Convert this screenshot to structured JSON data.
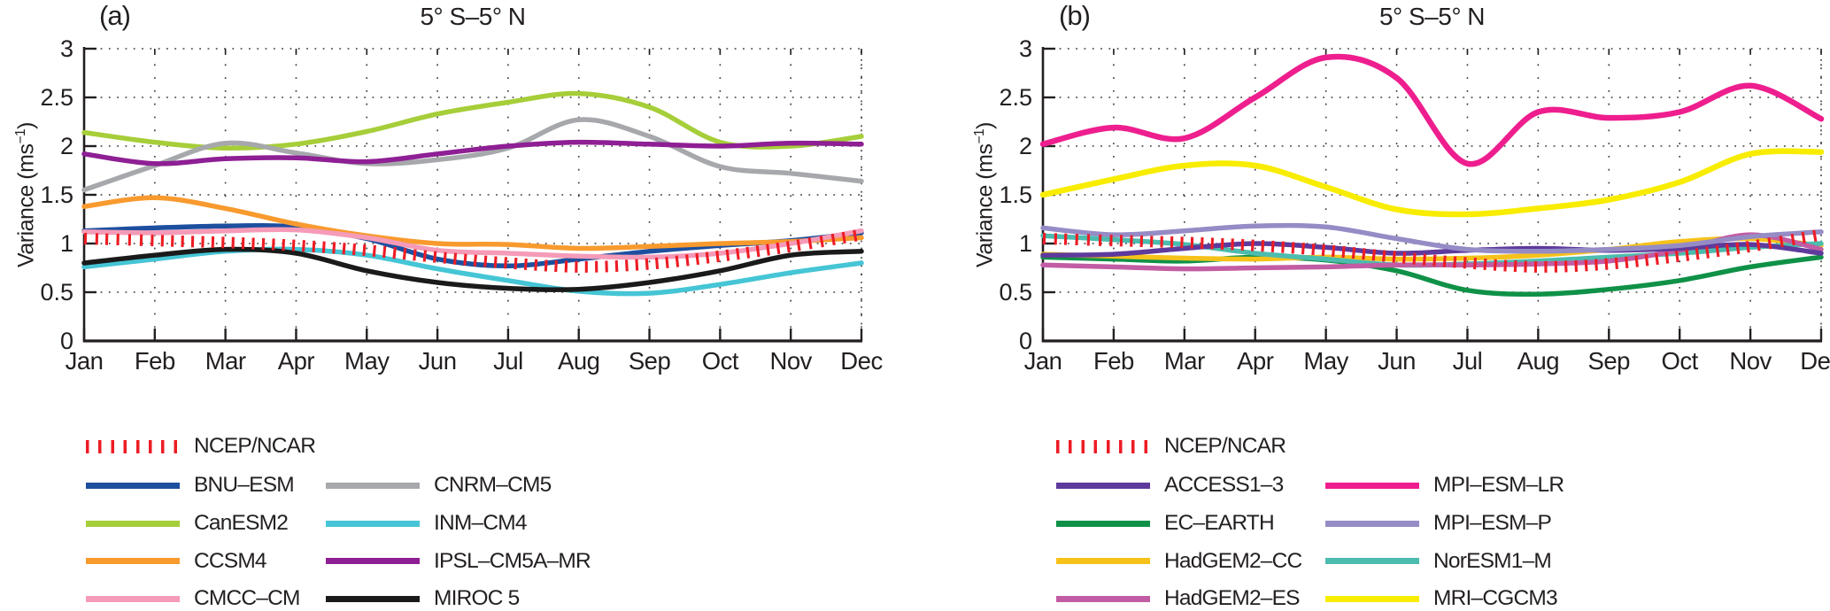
{
  "figure": {
    "background": "#ffffff",
    "axis_color": "#231f20",
    "grid_color": "#3c3c3c",
    "reference_red": "#ed1c24"
  },
  "chart_data": [
    {
      "type": "line",
      "panel_label": "(a)",
      "title": "5° S–5° N",
      "ylabel": {
        "pre": "Variance (ms",
        "sup": "−1",
        "post": ")"
      },
      "x_categories": [
        "Jan",
        "Feb",
        "Mar",
        "Apr",
        "May",
        "Jun",
        "Jul",
        "Aug",
        "Sep",
        "Oct",
        "Nov",
        "Dec"
      ],
      "y_ticks": [
        "0",
        "0.5",
        "1",
        "1.5",
        "2",
        "2.5",
        "3"
      ],
      "ylim": [
        0,
        3
      ],
      "grid": "dotted",
      "legend_position": "below",
      "reference_series": {
        "name": "NCEP/NCAR",
        "color": "#ed1c24",
        "style": "vertical-ticks",
        "values": [
          1.05,
          1.03,
          1.01,
          0.98,
          0.93,
          0.86,
          0.8,
          0.76,
          0.79,
          0.87,
          0.97,
          1.09
        ]
      },
      "series": [
        {
          "name": "BNU–ESM",
          "color": "#1d4f9f",
          "values": [
            1.13,
            1.16,
            1.18,
            1.17,
            1.05,
            0.84,
            0.77,
            0.84,
            0.92,
            0.98,
            1.03,
            1.11
          ]
        },
        {
          "name": "CanESM2",
          "color": "#a6ce39",
          "values": [
            2.14,
            2.04,
            1.98,
            2.02,
            2.15,
            2.33,
            2.45,
            2.54,
            2.4,
            2.04,
            2.0,
            2.1
          ]
        },
        {
          "name": "CCSM4",
          "color": "#f89a2e",
          "values": [
            1.38,
            1.47,
            1.36,
            1.2,
            1.08,
            1.0,
            0.99,
            0.95,
            0.97,
            1.0,
            1.02,
            1.06
          ]
        },
        {
          "name": "CMCC–CM",
          "color": "#f59bb8",
          "values": [
            1.12,
            1.11,
            1.13,
            1.14,
            1.06,
            0.93,
            0.9,
            0.87,
            0.86,
            0.9,
            1.0,
            1.13
          ]
        },
        {
          "name": "CNRM–CM5",
          "color": "#a6a8ab",
          "values": [
            1.55,
            1.8,
            2.03,
            1.93,
            1.82,
            1.86,
            1.98,
            2.27,
            2.1,
            1.79,
            1.72,
            1.64
          ]
        },
        {
          "name": "INM–CM4",
          "color": "#45c5d5",
          "values": [
            0.76,
            0.84,
            0.92,
            0.94,
            0.88,
            0.74,
            0.62,
            0.51,
            0.49,
            0.58,
            0.7,
            0.8
          ]
        },
        {
          "name": "IPSL–CM5A–MR",
          "color": "#8e1f94",
          "values": [
            1.92,
            1.82,
            1.87,
            1.88,
            1.84,
            1.92,
            2.0,
            2.04,
            2.02,
            2.0,
            2.03,
            2.02
          ]
        },
        {
          "name": "MIROC 5",
          "color": "#1a1a1a",
          "values": [
            0.8,
            0.88,
            0.94,
            0.9,
            0.72,
            0.6,
            0.54,
            0.53,
            0.6,
            0.72,
            0.88,
            0.92
          ]
        }
      ]
    },
    {
      "type": "line",
      "panel_label": "(b)",
      "title": "5° S–5° N",
      "ylabel": {
        "pre": "Variance (ms",
        "sup": "−1",
        "post": ")"
      },
      "x_categories": [
        "Jan",
        "Feb",
        "Mar",
        "Apr",
        "May",
        "Jun",
        "Jul",
        "Aug",
        "Sep",
        "Oct",
        "Nov",
        "Dec"
      ],
      "y_ticks": [
        "0",
        "0.5",
        "1",
        "1.5",
        "2",
        "2.5",
        "3"
      ],
      "ylim": [
        0,
        3
      ],
      "grid": "dotted",
      "legend_position": "below",
      "reference_series": {
        "name": "NCEP/NCAR",
        "color": "#ed1c24",
        "style": "vertical-ticks",
        "values": [
          1.05,
          1.03,
          1.01,
          0.98,
          0.93,
          0.86,
          0.8,
          0.76,
          0.79,
          0.87,
          0.97,
          1.09
        ]
      },
      "series": [
        {
          "name": "ACCESS1–3",
          "color": "#5e3a9c",
          "values": [
            0.88,
            0.89,
            0.95,
            1.0,
            0.96,
            0.9,
            0.93,
            0.95,
            0.93,
            0.95,
            0.99,
            0.9
          ]
        },
        {
          "name": "EC–EARTH",
          "color": "#0f9147",
          "values": [
            0.86,
            0.84,
            0.82,
            0.86,
            0.83,
            0.72,
            0.52,
            0.48,
            0.53,
            0.62,
            0.76,
            0.86
          ]
        },
        {
          "name": "HadGEM2–CC",
          "color": "#f6c21a",
          "values": [
            0.89,
            0.87,
            0.85,
            0.84,
            0.86,
            0.84,
            0.85,
            0.88,
            0.94,
            1.02,
            1.05,
            0.98
          ]
        },
        {
          "name": "HadGEM2–ES",
          "color": "#c25ca4",
          "values": [
            0.78,
            0.76,
            0.74,
            0.75,
            0.76,
            0.78,
            0.78,
            0.79,
            0.82,
            0.93,
            1.09,
            0.94
          ]
        },
        {
          "name": "MPI–ESM–LR",
          "color": "#ee1e8e",
          "values": [
            2.02,
            2.19,
            2.08,
            2.5,
            2.91,
            2.7,
            1.82,
            2.35,
            2.29,
            2.35,
            2.62,
            2.28
          ]
        },
        {
          "name": "MPI–ESM–P",
          "color": "#958cc6",
          "values": [
            1.16,
            1.09,
            1.13,
            1.18,
            1.17,
            1.05,
            0.94,
            0.92,
            0.94,
            0.98,
            1.07,
            1.12
          ]
        },
        {
          "name": "NorESM1–M",
          "color": "#4cbcae",
          "values": [
            1.08,
            1.04,
            0.99,
            0.9,
            0.84,
            0.78,
            0.79,
            0.82,
            0.86,
            0.9,
            0.96,
            1.0
          ]
        },
        {
          "name": "MRI–CGCM3",
          "color": "#f8ec00",
          "values": [
            1.5,
            1.66,
            1.8,
            1.8,
            1.58,
            1.35,
            1.3,
            1.36,
            1.45,
            1.63,
            1.92,
            1.94
          ]
        }
      ]
    }
  ]
}
